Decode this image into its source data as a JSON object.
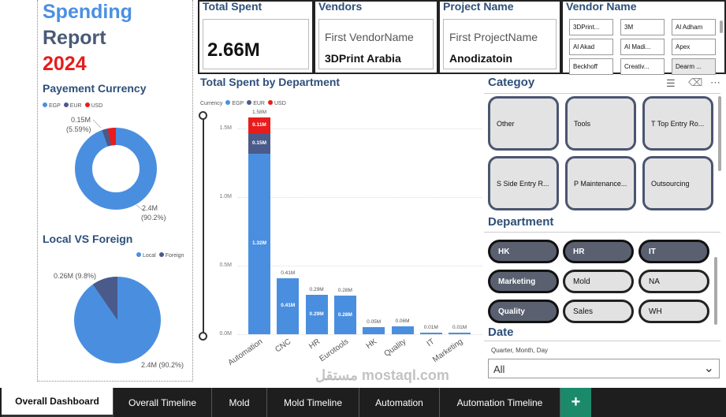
{
  "report": {
    "title_line1": "Spending",
    "title_line2": "Report",
    "title_year": "2024",
    "colors": {
      "title_blue": "#4a90e2",
      "title_dark": "#4a5a78",
      "year_red": "#e81c1c"
    }
  },
  "currency_section": {
    "title": "Payement Currency",
    "legend": [
      {
        "label": "EGP",
        "color": "#4a8fdf"
      },
      {
        "label": "EUR",
        "color": "#4a5a8a"
      },
      {
        "label": "USD",
        "color": "#e81c1c"
      }
    ],
    "label_small": "0.15M",
    "label_small_pct": "(5.59%)",
    "label_big": "2.4M",
    "label_big_pct": "(90.2%)"
  },
  "local_section": {
    "title": "Local VS Foreign",
    "legend": [
      {
        "label": "Local",
        "color": "#4a8fdf"
      },
      {
        "label": "Foreign",
        "color": "#4a5a8a"
      }
    ],
    "label_small": "0.26M (9.8%)",
    "label_big": "2.4M (90.2%)"
  },
  "cards": {
    "total_spent": {
      "header": "Total Spent",
      "value": "2.66M"
    },
    "vendors": {
      "header": "Vendors",
      "sub": "First VendorName",
      "value": "3DPrint Arabia"
    },
    "project": {
      "header": "Project Name",
      "sub": "First ProjectName",
      "value": "Anodizatoin"
    },
    "vendor_name": {
      "header": "Vendor Name",
      "items": [
        "3DPrint...",
        "3M",
        "Al Adham",
        "Al Akad",
        "Al Madi...",
        "Apex",
        "Beckhoff",
        "Creativ...",
        "Dearm ..."
      ]
    }
  },
  "chart_data": {
    "type": "bar",
    "title": "Total Spent by Department",
    "legend_title": "Currency",
    "legend": [
      {
        "label": "EGP",
        "color": "#4a8fdf"
      },
      {
        "label": "EUR",
        "color": "#4a5a8a"
      },
      {
        "label": "USD",
        "color": "#e81c1c"
      }
    ],
    "yticks": [
      "0.0M",
      "0.5M",
      "1.0M",
      "1.5M"
    ],
    "ylim": [
      0,
      1.6
    ],
    "categories": [
      "Automation",
      "CNC",
      "HR",
      "Eurotools",
      "HK",
      "Quality",
      "IT",
      "Marketing"
    ],
    "series": [
      {
        "name": "EGP",
        "values": [
          1.32,
          0.41,
          0.29,
          0.28,
          0.05,
          0.06,
          0.01,
          0.01
        ]
      },
      {
        "name": "EUR",
        "values": [
          0.15,
          0,
          0,
          0,
          0,
          0,
          0,
          0
        ]
      },
      {
        "name": "USD",
        "values": [
          0.11,
          0,
          0,
          0,
          0,
          0,
          0,
          0
        ]
      }
    ],
    "inner_labels": [
      [
        "1.32M",
        "0.15M",
        "0.11M"
      ],
      [
        "0.41M"
      ],
      [
        "0.29M"
      ],
      [
        "0.28M"
      ],
      [],
      [],
      [],
      []
    ],
    "total_labels": [
      "1.58M",
      "0.41M",
      "0.29M",
      "0.28M",
      "0.05M",
      "0.06M",
      "0.01M",
      "0.01M"
    ]
  },
  "category_slicer": {
    "title": "Categoy",
    "items": [
      "Other",
      "Tools",
      "T Top Entry Ro...",
      "S Side Entry R...",
      "P Maintenance...",
      "Outsourcing"
    ]
  },
  "department_slicer": {
    "title": "Department",
    "items": [
      {
        "label": "HK",
        "selected": true
      },
      {
        "label": "HR",
        "selected": true
      },
      {
        "label": "IT",
        "selected": true
      },
      {
        "label": "Marketing",
        "selected": true
      },
      {
        "label": "Mold",
        "selected": false
      },
      {
        "label": "NA",
        "selected": false
      },
      {
        "label": "Quality",
        "selected": true
      },
      {
        "label": "Sales",
        "selected": false
      },
      {
        "label": "WH",
        "selected": false
      }
    ]
  },
  "date_slicer": {
    "title": "Date",
    "hierarchy": "Quarter, Month, Day",
    "selected": "All"
  },
  "tabs": [
    {
      "label": "Overall Dashboard",
      "active": true
    },
    {
      "label": "Overall Timeline",
      "active": false
    },
    {
      "label": "Mold",
      "active": false
    },
    {
      "label": "Mold Timeline",
      "active": false
    },
    {
      "label": "Automation",
      "active": false
    },
    {
      "label": "Automation Timeline",
      "active": false
    }
  ],
  "add_tab_label": "+",
  "watermark": "مستقل mostaql.com"
}
